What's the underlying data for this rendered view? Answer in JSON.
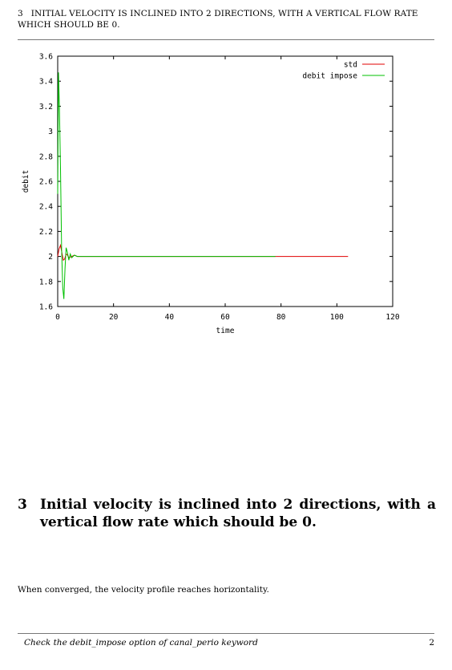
{
  "header": {
    "section_number": "3",
    "title": "INITIAL VELOCITY IS INCLINED INTO 2 DIRECTIONS, WITH A VERTICAL FLOW RATE WHICH SHOULD BE 0."
  },
  "chart_data": {
    "type": "line",
    "title": "",
    "xlabel": "time",
    "ylabel": "debit",
    "xlim": [
      0,
      120
    ],
    "ylim": [
      1.6,
      3.6
    ],
    "xticks": [
      "0",
      "20",
      "40",
      "60",
      "80",
      "100",
      "120"
    ],
    "yticks": [
      "1.6",
      "1.8",
      "2",
      "2.2",
      "2.4",
      "2.6",
      "2.8",
      "3",
      "3.2",
      "3.4",
      "3.6"
    ],
    "legend_position": "top-right",
    "grid": false,
    "series": [
      {
        "name": "std",
        "color": "#e00000",
        "x": [
          0,
          0.5,
          1,
          1.5,
          2,
          2.5,
          3,
          3.5,
          4,
          5,
          6,
          7,
          8,
          10,
          12,
          15,
          20,
          24,
          30,
          50,
          80,
          104
        ],
        "y": [
          2.0,
          2.06,
          2.09,
          2.03,
          1.97,
          1.98,
          2.02,
          2.01,
          1.99,
          2.0,
          2.01,
          2.0,
          2.0,
          2.0,
          2.0,
          2.0,
          2.0,
          2.0,
          2.0,
          2.0,
          2.0,
          2.0
        ]
      },
      {
        "name": "debit impose",
        "color": "#00c000",
        "x": [
          0,
          0.3,
          0.6,
          1.0,
          1.4,
          1.8,
          2.2,
          2.6,
          3.0,
          3.5,
          4.0,
          4.5,
          5,
          6,
          7,
          8,
          10,
          12,
          15,
          20,
          24,
          30,
          50,
          78
        ],
        "y": [
          2.5,
          3.47,
          3.2,
          2.7,
          2.05,
          1.75,
          1.66,
          1.9,
          2.07,
          2.03,
          1.97,
          2.02,
          1.99,
          2.01,
          2.0,
          2.0,
          2.0,
          2.0,
          2.0,
          2.0,
          2.0,
          2.0,
          2.0,
          2.0
        ]
      }
    ]
  },
  "section": {
    "number": "3",
    "title": "Initial velocity is inclined into 2 directions, with a vertical flow rate which should be 0."
  },
  "paragraph": "When converged, the velocity profile reaches horizontality.",
  "footer": {
    "text": "Check the debit_impose option of canal_perio keyword",
    "page_number": "2"
  }
}
